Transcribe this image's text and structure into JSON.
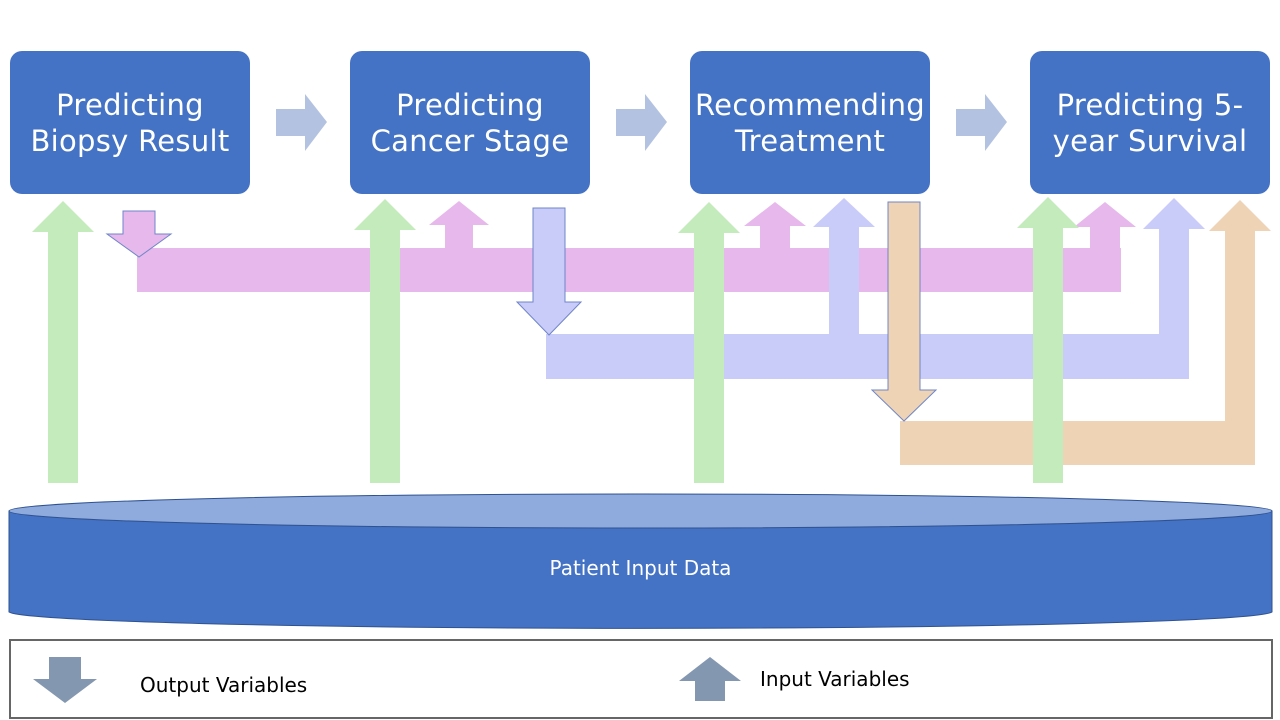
{
  "stages": [
    {
      "label_line1": "Predicting",
      "label_line2": "Biopsy Result"
    },
    {
      "label_line1": "Predicting",
      "label_line2": "Cancer Stage"
    },
    {
      "label_line1": "Recommending",
      "label_line2": "Treatment"
    },
    {
      "label_line1": "Predicting 5-",
      "label_line2": "year Survival"
    }
  ],
  "database": {
    "label": "Patient Input Data"
  },
  "legend": {
    "output_label": "Output Variables",
    "input_label": "Input Variables"
  },
  "colors": {
    "stage_fill": "#4472C4",
    "flow_arrow": "#B4C2E2",
    "patient_data_arrow": "#C3EBBB",
    "biopsy_output": "#E6B8EB",
    "stage_output": "#C9CBF9",
    "treatment_output": "#EFD3B5",
    "database_body": "#4472C4",
    "database_top": "#8FAADC",
    "legend_arrow": "#8497B0"
  }
}
